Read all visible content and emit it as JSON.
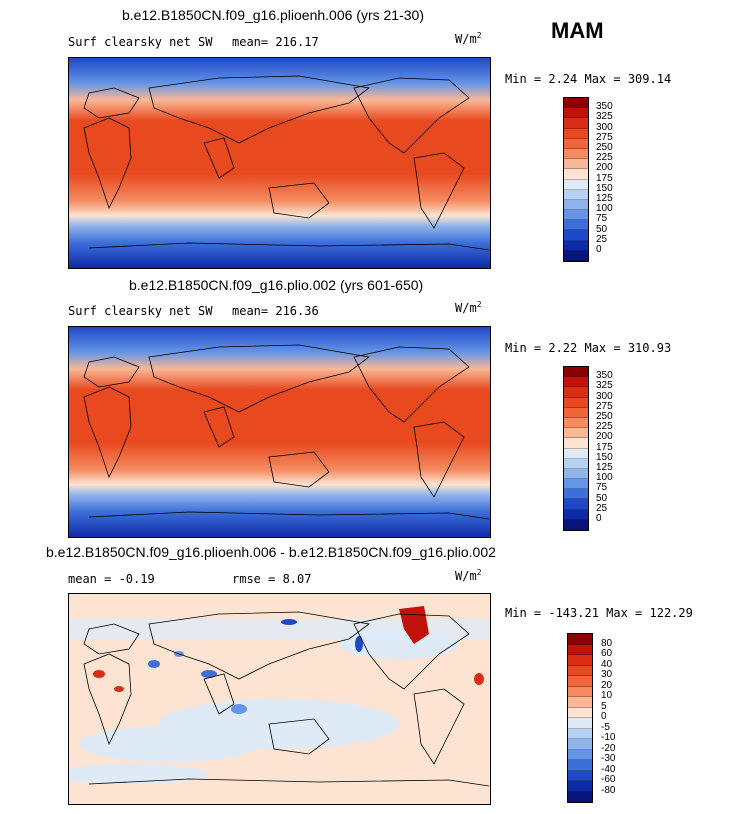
{
  "season": "MAM",
  "panels": [
    {
      "title": "b.e12.B1850CN.f09_g16.plioenh.006 (yrs 21-30)",
      "left_label": "Surf clearsky net SW",
      "stat1": "mean= 216.17",
      "stat2": "",
      "units": "W/m",
      "units_exp": "2",
      "minmax": "Min =   2.24 Max = 309.14"
    },
    {
      "title": "b.e12.B1850CN.f09_g16.plio.002 (yrs 601-650)",
      "left_label": "Surf clearsky net SW",
      "stat1": "mean= 216.36",
      "stat2": "",
      "units": "W/m",
      "units_exp": "2",
      "minmax": "Min =   2.22 Max = 310.93"
    },
    {
      "title": "b.e12.B1850CN.f09_g16.plioenh.006 - b.e12.B1850CN.f09_g16.plio.002",
      "left_label": "mean =  -0.19",
      "stat1": "rmse =   8.07",
      "stat2": "",
      "units": "W/m",
      "units_exp": "2",
      "minmax": "Min = -143.21 Max = 122.29"
    }
  ],
  "colorbars": {
    "abs": {
      "labels": [
        "350",
        "325",
        "300",
        "275",
        "250",
        "225",
        "200",
        "175",
        "150",
        "125",
        "100",
        "75",
        "50",
        "25",
        "0"
      ],
      "colors": [
        "#8b0000",
        "#c1120c",
        "#d92e14",
        "#e8491f",
        "#f0663a",
        "#f58c61",
        "#fab896",
        "#fde4d2",
        "#deebf7",
        "#b7d1f2",
        "#8fb4ec",
        "#6495e6",
        "#3d6fd9",
        "#1f48c8",
        "#0d2aa8",
        "#07157a"
      ]
    },
    "diff": {
      "labels": [
        "80",
        "60",
        "40",
        "30",
        "20",
        "10",
        "5",
        "0",
        "-5",
        "-10",
        "-20",
        "-30",
        "-40",
        "-60",
        "-80"
      ],
      "colors": [
        "#8b0000",
        "#c1120c",
        "#d92e14",
        "#e8491f",
        "#f0663a",
        "#f58c61",
        "#fab896",
        "#fde4d2",
        "#deebf7",
        "#b7d1f2",
        "#8fb4ec",
        "#6495e6",
        "#3d6fd9",
        "#1f48c8",
        "#0d2aa8",
        "#07157a"
      ]
    }
  }
}
